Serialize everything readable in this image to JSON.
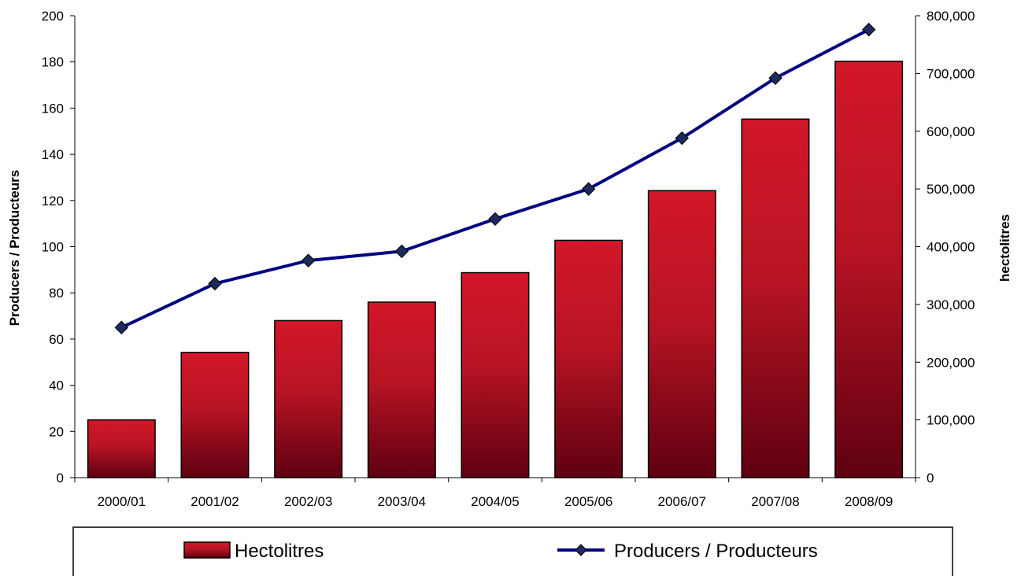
{
  "chart_data": {
    "type": "bar",
    "categories": [
      "2000/01",
      "2001/02",
      "2002/03",
      "2003/04",
      "2004/05",
      "2005/06",
      "2006/07",
      "2007/08",
      "2008/09"
    ],
    "series": [
      {
        "name": "Hectolitres",
        "type": "bar",
        "axis": "right",
        "color": "#cc1525",
        "values": [
          100000,
          217000,
          272000,
          304000,
          355000,
          411000,
          497000,
          621000,
          721000
        ]
      },
      {
        "name": "Producers / Producteurs",
        "type": "line",
        "axis": "left",
        "color": "#000080",
        "values": [
          65,
          84,
          94,
          98,
          112,
          125,
          147,
          173,
          194
        ]
      }
    ],
    "y_left": {
      "label": "Producers / Producteurs",
      "range": [
        0,
        200
      ],
      "ticks": [
        "0",
        "20",
        "40",
        "60",
        "80",
        "100",
        "120",
        "140",
        "160",
        "180",
        "200"
      ]
    },
    "y_right": {
      "label": "hectolitres",
      "range": [
        0,
        800000
      ],
      "ticks": [
        "0",
        "100,000",
        "200,000",
        "300,000",
        "400,000",
        "500,000",
        "600,000",
        "700,000",
        "800,000"
      ]
    },
    "grid": false,
    "legend_position": "bottom"
  }
}
